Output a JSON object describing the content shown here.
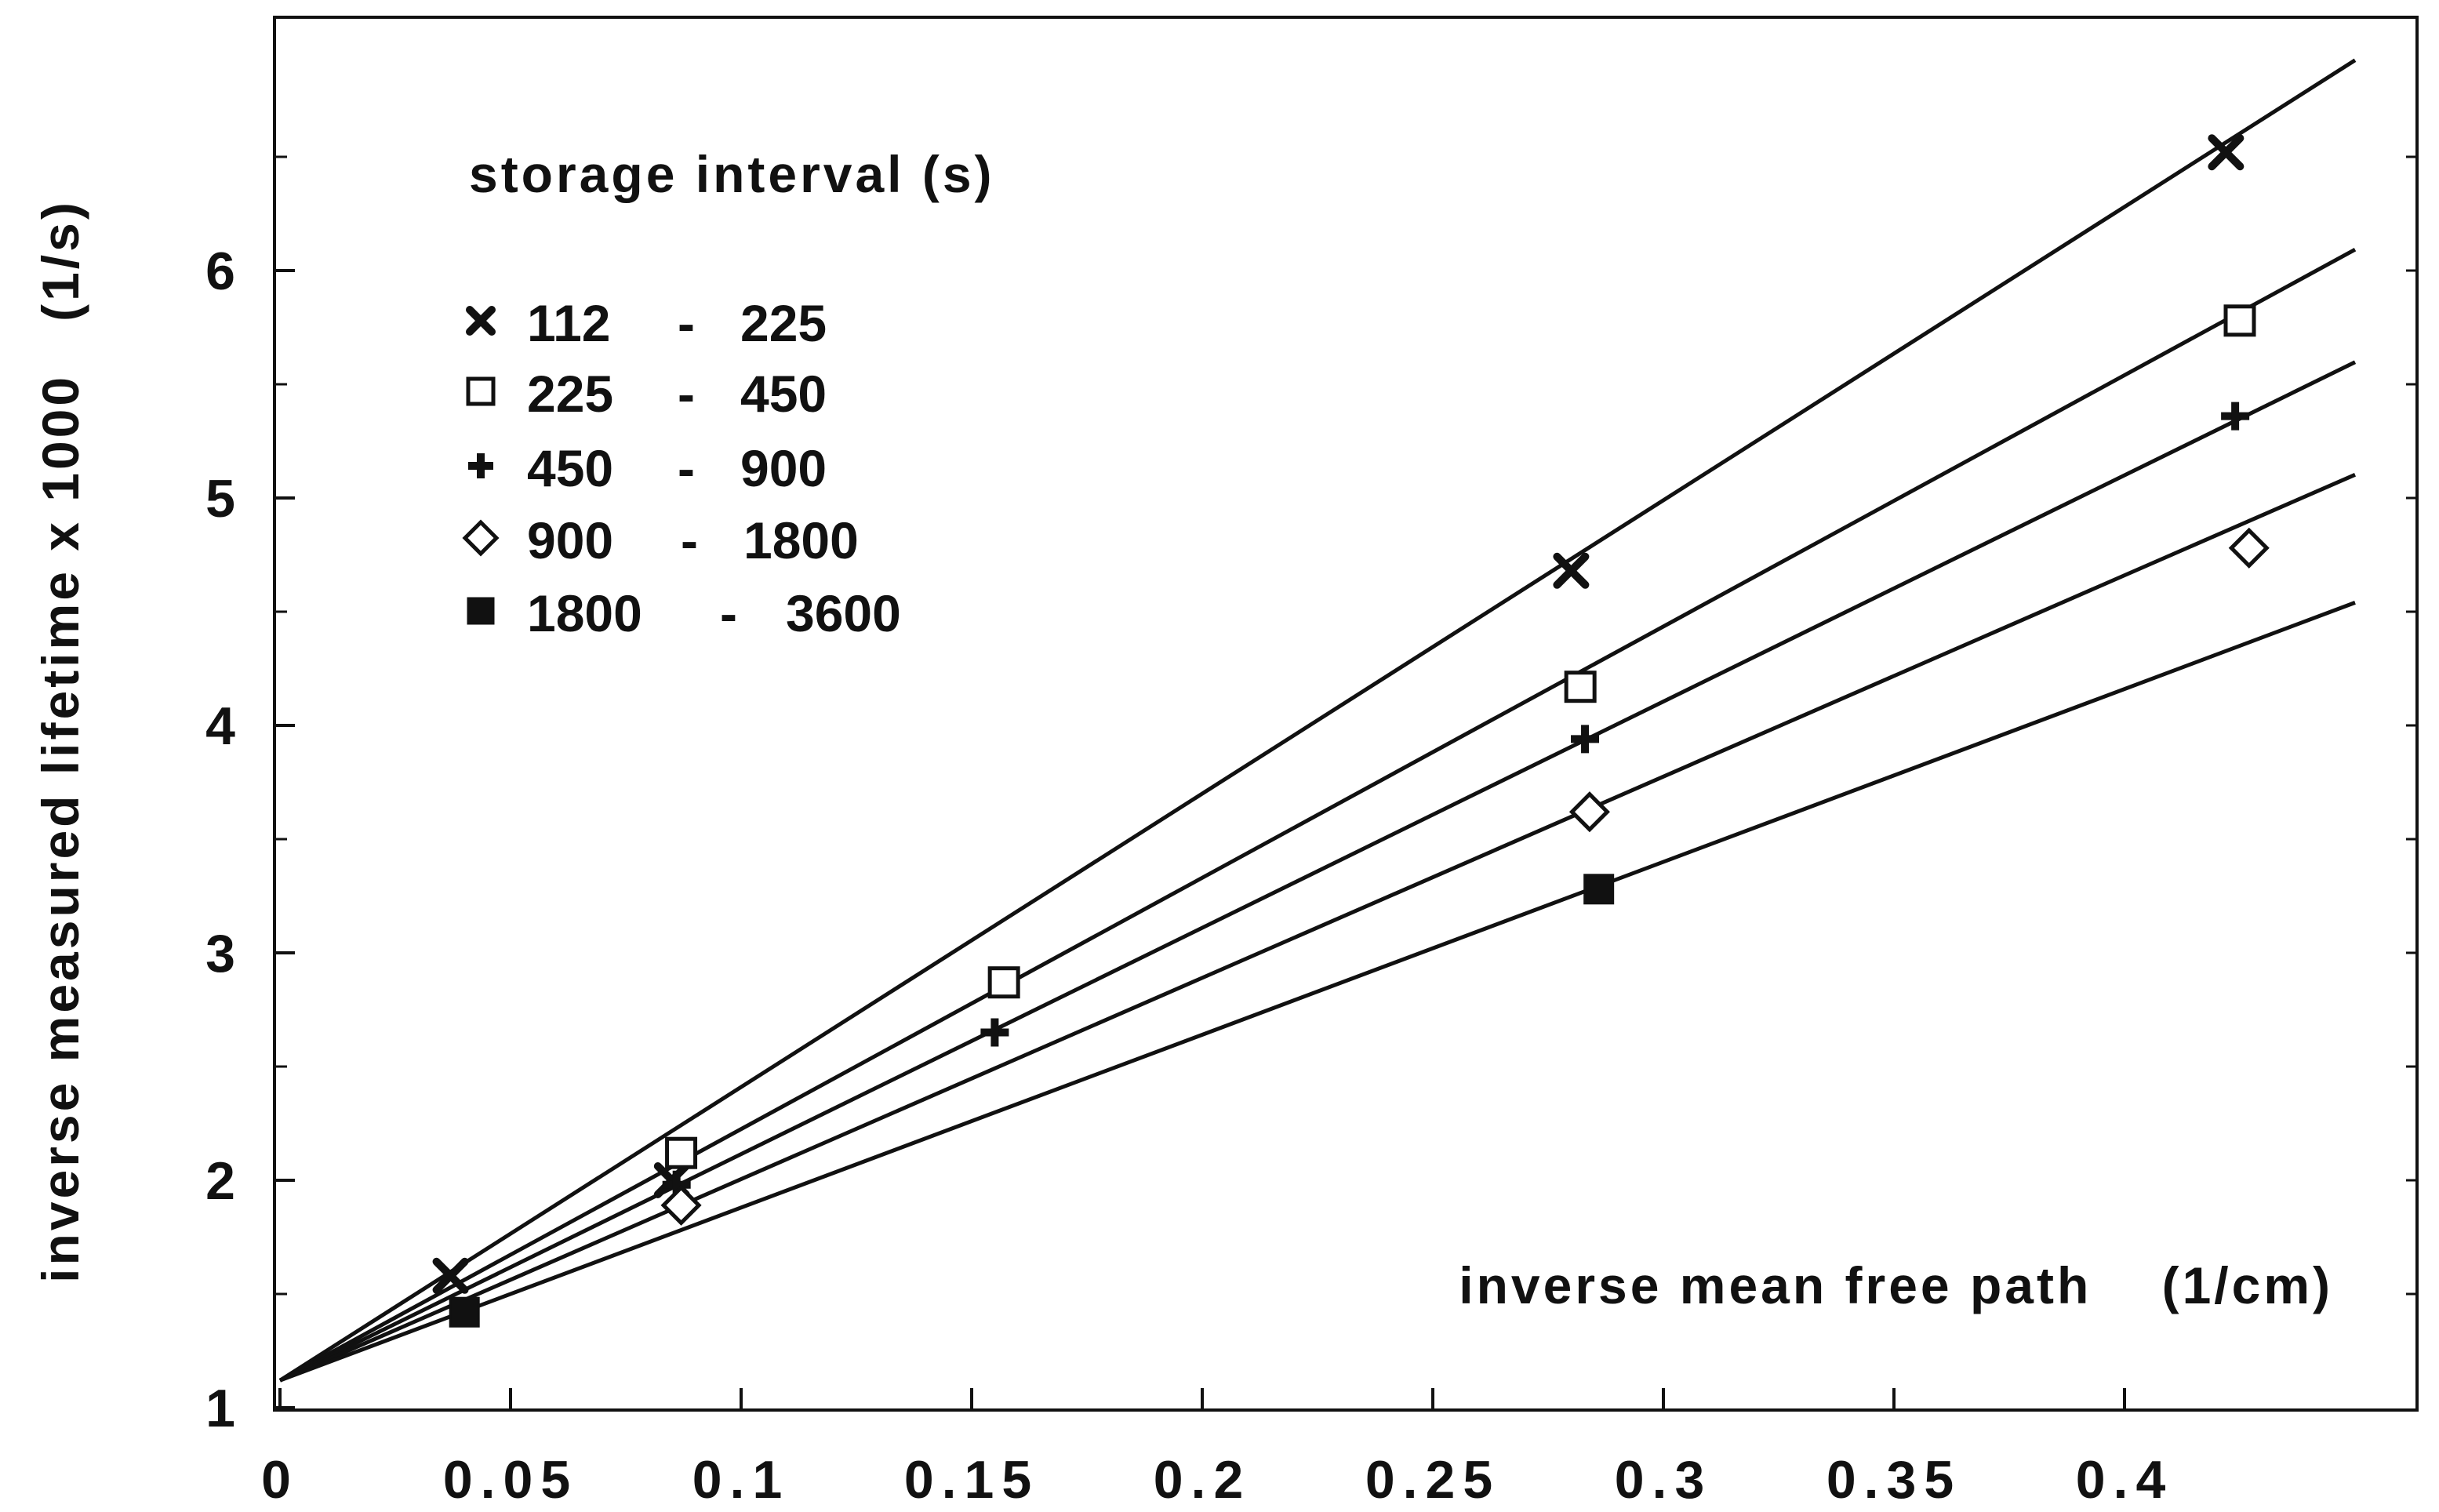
{
  "chart_data": {
    "type": "scatter",
    "title": "",
    "xlabel": "inverse mean free path    (1/cm)",
    "ylabel": "inverse measured lifetime x 1000   (1/s)",
    "xlim": [
      0,
      0.45
    ],
    "ylim": [
      1,
      7
    ],
    "x_ticks": [
      0,
      0.05,
      0.1,
      0.15,
      0.2,
      0.25,
      0.3,
      0.35,
      0.4
    ],
    "x_tick_labels": [
      "0",
      "0.05",
      "0.1",
      "0.15",
      "0.2",
      "0.25",
      "0.3",
      "0.35",
      "0.4"
    ],
    "y_ticks": [
      1,
      2,
      3,
      4,
      5,
      6
    ],
    "y_tick_labels": [
      "1",
      "2",
      "3",
      "4",
      "5",
      "6"
    ],
    "grid": false,
    "legend_title": "storage interval (s)",
    "legend_position": "top-left",
    "series": [
      {
        "name": "112 - 225",
        "from": "112",
        "to": "225",
        "marker": "x",
        "x": [
          0.037,
          0.085,
          0.28,
          0.422
        ],
        "y": [
          1.58,
          2.0,
          4.68,
          6.52
        ],
        "fit": {
          "intercept": 1.12,
          "slope": 12.9
        }
      },
      {
        "name": "225 - 450",
        "from": "225",
        "to": "450",
        "marker": "open-square",
        "x": [
          0.087,
          0.157,
          0.282,
          0.425
        ],
        "y": [
          2.12,
          2.87,
          4.17,
          5.78
        ],
        "fit": {
          "intercept": 1.12,
          "slope": 11.05
        }
      },
      {
        "name": "450 - 900",
        "from": "450",
        "to": "900",
        "marker": "plus",
        "x": [
          0.086,
          0.155,
          0.283,
          0.424
        ],
        "y": [
          1.98,
          2.65,
          3.94,
          5.36
        ],
        "fit": {
          "intercept": 1.12,
          "slope": 9.95
        }
      },
      {
        "name": "900 - 1800",
        "from": "900",
        "to": "1800",
        "marker": "open-diamond",
        "x": [
          0.087,
          0.284,
          0.427
        ],
        "y": [
          1.89,
          3.62,
          4.78
        ],
        "fit": {
          "intercept": 1.12,
          "slope": 8.85
        }
      },
      {
        "name": "1800 - 3600",
        "from": "1800",
        "to": "3600",
        "marker": "filled-square",
        "x": [
          0.04,
          0.286
        ],
        "y": [
          1.42,
          3.28
        ],
        "fit": {
          "intercept": 1.12,
          "slope": 7.6
        }
      }
    ]
  }
}
